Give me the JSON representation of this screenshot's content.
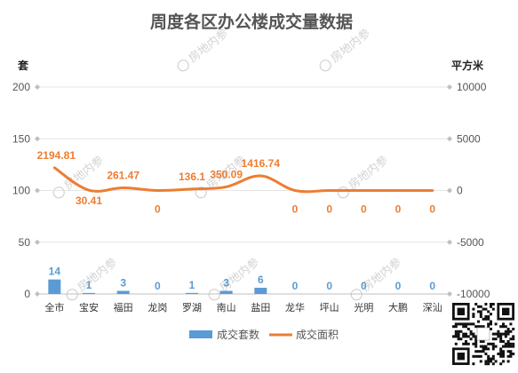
{
  "chart_data": {
    "type": "bar+line",
    "title": "周度各区办公楼成交量数据",
    "categories": [
      "全市",
      "宝安",
      "福田",
      "龙岗",
      "罗湖",
      "南山",
      "盐田",
      "龙华",
      "坪山",
      "光明",
      "大鹏",
      "深汕"
    ],
    "series": [
      {
        "name": "成交套数",
        "type": "bar",
        "axis": "left",
        "color": "#5b9bd5",
        "values": [
          14,
          1,
          3,
          0,
          1,
          3,
          6,
          0,
          0,
          0,
          0,
          0
        ]
      },
      {
        "name": "成交面积",
        "type": "line",
        "axis": "right",
        "color": "#ed7d31",
        "values": [
          2194.81,
          30.41,
          261.47,
          0,
          136.1,
          350.09,
          1416.74,
          0,
          0,
          0,
          0,
          0
        ]
      }
    ],
    "y_left": {
      "label": "套",
      "min": 0,
      "max": 200,
      "ticks": [
        0,
        50,
        100,
        150,
        200
      ]
    },
    "y_right": {
      "label": "平方米",
      "min": -10000,
      "max": 10000,
      "ticks": [
        -10000,
        -5000,
        0,
        5000,
        10000
      ]
    },
    "grid": true,
    "legend_position": "bottom",
    "watermark": "房地内参"
  }
}
